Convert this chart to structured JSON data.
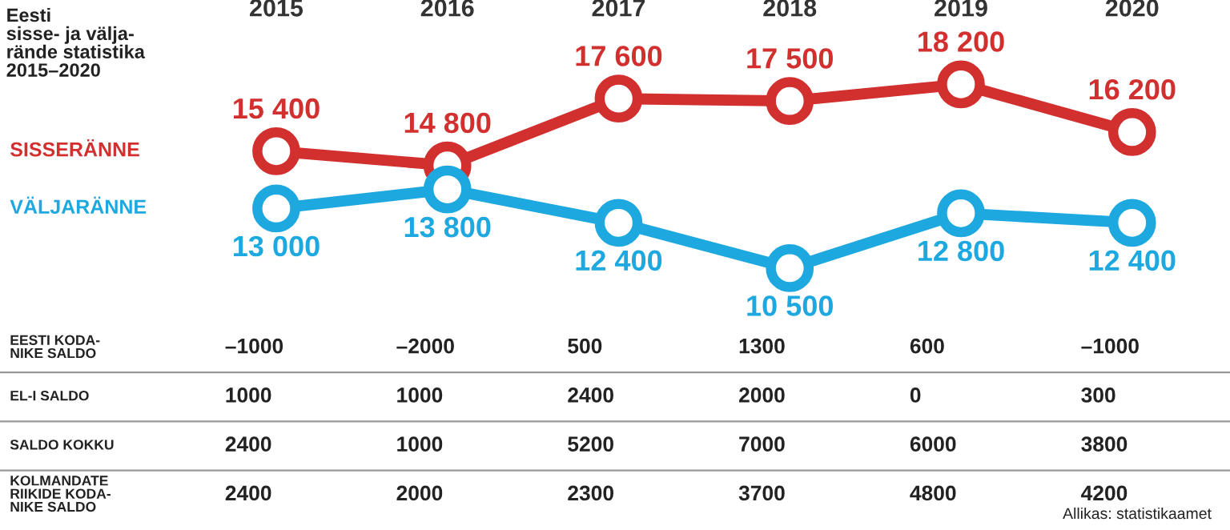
{
  "chart_data": [
    {
      "type": "line",
      "title": "Eesti\nsisse- ja välja-\nrände statistika\n2015–2020",
      "categories": [
        "2015",
        "2016",
        "2017",
        "2018",
        "2019",
        "2020"
      ],
      "data_labels": true,
      "marker": "circle",
      "line_style": "solid",
      "grid": false,
      "legend": false,
      "series": [
        {
          "name": "SISSERÄNNE",
          "color": "#d22f2f",
          "values": [
            15400,
            14800,
            17600,
            17500,
            18200,
            16200
          ]
        },
        {
          "name": "VÄLJARÄNNE",
          "color": "#1ea8e0",
          "values": [
            13000,
            13800,
            12400,
            10500,
            12800,
            12400
          ]
        }
      ]
    },
    {
      "type": "other",
      "y_categories": [
        "EESTI KODA-\nNIKE SALDO",
        "EL-I SALDO",
        "SALDO KOKKU",
        "KOLMANDATE\nRIIKIDE KODA-\nNIKE SALDO"
      ],
      "cell_labels": [
        [
          "–1000",
          "–2000",
          "500",
          "1300",
          "600",
          "–1000"
        ],
        [
          "1000",
          "1000",
          "2400",
          "2000",
          "0",
          "300"
        ],
        [
          "2400",
          "1000",
          "5200",
          "7000",
          "6000",
          "3800"
        ],
        [
          "2400",
          "2000",
          "2300",
          "3700",
          "4800",
          "4200"
        ]
      ],
      "annotations": [
        "Allikas: statistikaamet"
      ]
    }
  ]
}
